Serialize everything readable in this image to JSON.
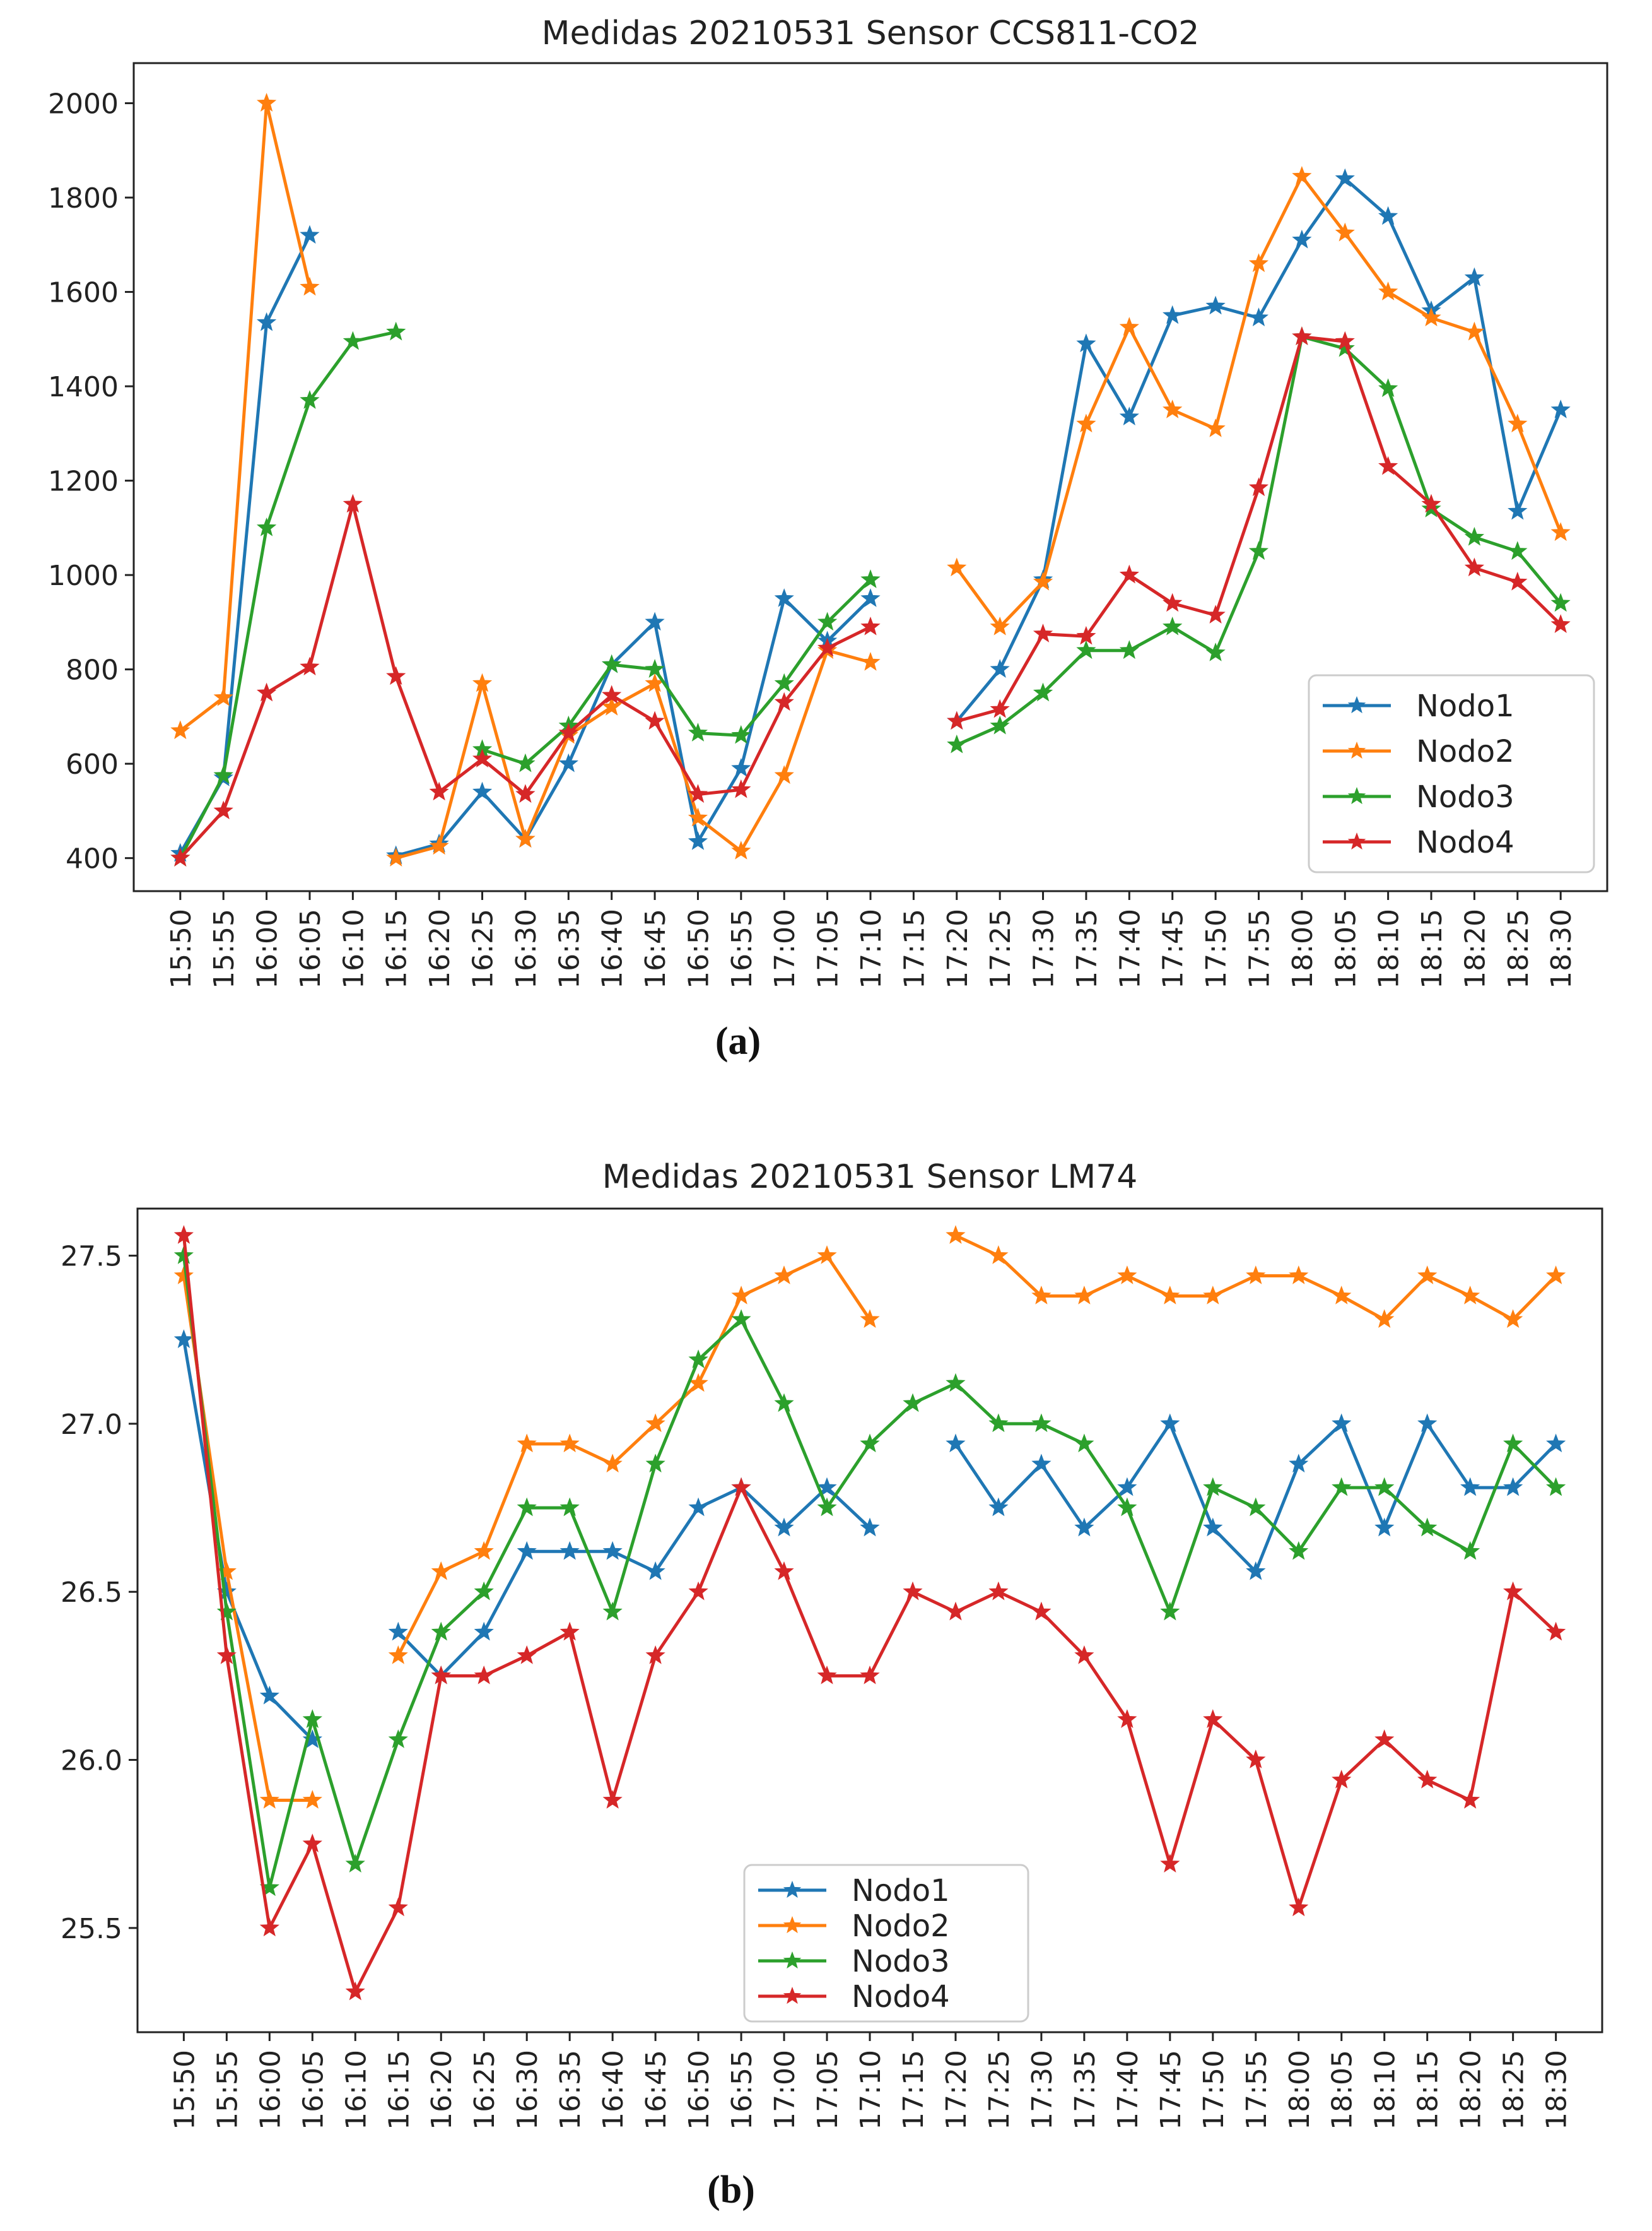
{
  "panel_labels": [
    "(a)",
    "(b)"
  ],
  "colors": {
    "Nodo1": "#1f77b4",
    "Nodo2": "#ff7f0e",
    "Nodo3": "#2ca02c",
    "Nodo4": "#d62728"
  },
  "chart_data": [
    {
      "type": "line",
      "title": "Medidas 20210531 Sensor CCS811-CO2",
      "xlabel": "",
      "ylabel": "",
      "categories": [
        "15:50",
        "15:55",
        "16:00",
        "16:05",
        "16:10",
        "16:15",
        "16:20",
        "16:25",
        "16:30",
        "16:35",
        "16:40",
        "16:45",
        "16:50",
        "16:55",
        "17:00",
        "17:05",
        "17:10",
        "17:15",
        "17:20",
        "17:25",
        "17:30",
        "17:35",
        "17:40",
        "17:45",
        "17:50",
        "17:55",
        "18:00",
        "18:05",
        "18:10",
        "18:15",
        "18:20",
        "18:25",
        "18:30"
      ],
      "ylim": [
        330,
        2085
      ],
      "yticks": [
        400,
        600,
        800,
        1000,
        1200,
        1400,
        1600,
        1800,
        2000
      ],
      "ytick_labels": [
        "400",
        "600",
        "800",
        "1000",
        "1200",
        "1400",
        "1600",
        "1800",
        "2000"
      ],
      "legend_position": "lower-right",
      "series": [
        {
          "name": "Nodo1",
          "values": [
            410,
            570,
            1535,
            1720,
            null,
            405,
            430,
            540,
            440,
            600,
            810,
            900,
            435,
            590,
            950,
            860,
            950,
            null,
            690,
            800,
            990,
            1490,
            1335,
            1550,
            1570,
            1545,
            1710,
            1840,
            1760,
            1560,
            1630,
            1135,
            1350
          ]
        },
        {
          "name": "Nodo2",
          "values": [
            670,
            740,
            2000,
            1610,
            null,
            400,
            425,
            770,
            440,
            660,
            720,
            770,
            485,
            415,
            575,
            840,
            815,
            null,
            1015,
            890,
            985,
            1320,
            1525,
            1350,
            1310,
            1660,
            1845,
            1725,
            1600,
            1545,
            1515,
            1320,
            1090
          ]
        },
        {
          "name": "Nodo3",
          "values": [
            400,
            575,
            1100,
            1370,
            1495,
            1515,
            null,
            630,
            600,
            680,
            810,
            800,
            665,
            660,
            770,
            900,
            990,
            null,
            640,
            680,
            750,
            840,
            840,
            890,
            835,
            1050,
            1505,
            1480,
            1395,
            1140,
            1080,
            1050,
            940
          ]
        },
        {
          "name": "Nodo4",
          "values": [
            400,
            500,
            750,
            805,
            1150,
            785,
            540,
            610,
            535,
            665,
            745,
            690,
            535,
            545,
            730,
            845,
            890,
            null,
            690,
            715,
            875,
            870,
            1000,
            940,
            915,
            1185,
            1505,
            1495,
            1230,
            1150,
            1015,
            985,
            895
          ]
        }
      ]
    },
    {
      "type": "line",
      "title": "Medidas 20210531 Sensor LM74",
      "xlabel": "",
      "ylabel": "",
      "categories": [
        "15:50",
        "15:55",
        "16:00",
        "16:05",
        "16:10",
        "16:15",
        "16:20",
        "16:25",
        "16:30",
        "16:35",
        "16:40",
        "16:45",
        "16:50",
        "16:55",
        "17:00",
        "17:05",
        "17:10",
        "17:15",
        "17:20",
        "17:25",
        "17:30",
        "17:35",
        "17:40",
        "17:45",
        "17:50",
        "17:55",
        "18:00",
        "18:05",
        "18:10",
        "18:15",
        "18:20",
        "18:25",
        "18:30"
      ],
      "ylim": [
        25.19,
        27.64
      ],
      "yticks": [
        25.5,
        26.0,
        26.5,
        27.0,
        27.5
      ],
      "ytick_labels": [
        "25.5",
        "26.0",
        "26.5",
        "27.0",
        "27.5"
      ],
      "legend_position": "lower-center",
      "series": [
        {
          "name": "Nodo1",
          "values": [
            27.25,
            26.5,
            26.19,
            26.06,
            null,
            26.38,
            26.25,
            26.38,
            26.62,
            26.62,
            26.62,
            26.56,
            26.75,
            26.81,
            26.69,
            26.81,
            26.69,
            null,
            26.94,
            26.75,
            26.88,
            26.69,
            26.81,
            27.0,
            26.69,
            26.56,
            26.88,
            27.0,
            26.69,
            27.0,
            26.81,
            26.81,
            26.94
          ]
        },
        {
          "name": "Nodo2",
          "values": [
            27.44,
            26.56,
            25.88,
            25.88,
            null,
            26.31,
            26.56,
            26.62,
            26.94,
            26.94,
            26.88,
            27.0,
            27.12,
            27.38,
            27.44,
            27.5,
            27.31,
            null,
            27.56,
            27.5,
            27.38,
            27.38,
            27.44,
            27.38,
            27.38,
            27.44,
            27.44,
            27.38,
            27.31,
            27.44,
            27.38,
            27.31,
            27.44
          ]
        },
        {
          "name": "Nodo3",
          "values": [
            27.5,
            26.44,
            25.62,
            26.12,
            25.69,
            26.06,
            26.38,
            26.5,
            26.75,
            26.75,
            26.44,
            26.88,
            27.19,
            27.31,
            27.06,
            26.75,
            26.94,
            27.06,
            27.12,
            27.0,
            27.0,
            26.94,
            26.75,
            26.44,
            26.81,
            26.75,
            26.62,
            26.81,
            26.81,
            26.69,
            26.62,
            26.94,
            26.81
          ]
        },
        {
          "name": "Nodo4",
          "values": [
            27.56,
            26.31,
            25.5,
            25.75,
            25.31,
            25.56,
            26.25,
            26.25,
            26.31,
            26.38,
            25.88,
            26.31,
            26.5,
            26.81,
            26.56,
            26.25,
            26.25,
            26.5,
            26.44,
            26.5,
            26.44,
            26.31,
            26.12,
            25.69,
            26.12,
            26.0,
            25.56,
            25.94,
            26.06,
            25.94,
            25.88,
            26.5,
            26.38
          ]
        }
      ]
    }
  ]
}
